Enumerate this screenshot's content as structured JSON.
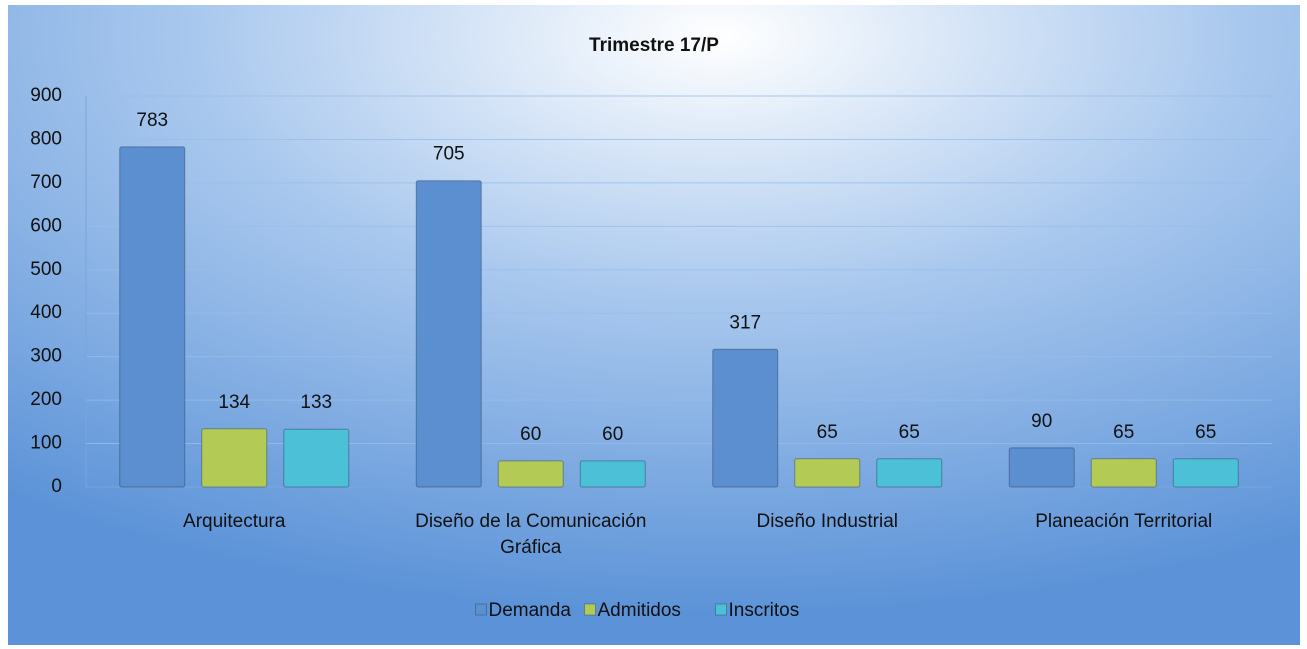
{
  "chart_data": {
    "type": "bar",
    "title": "Trimestre 17/P",
    "categories": [
      "Arquitectura",
      "Diseño de la Comunicación Gráfica",
      "Diseño Industrial",
      "Planeación Territorial"
    ],
    "series": [
      {
        "name": "Demanda",
        "color": "#5b8fd0",
        "values": [
          783,
          705,
          317,
          90
        ]
      },
      {
        "name": "Admitidos",
        "color": "#b3ca55",
        "values": [
          134,
          60,
          65,
          65
        ]
      },
      {
        "name": "Inscritos",
        "color": "#4cc0d6",
        "values": [
          133,
          60,
          65,
          65
        ]
      }
    ],
    "ylim": [
      0,
      900
    ],
    "yticks": [
      0,
      100,
      200,
      300,
      400,
      500,
      600,
      700,
      800,
      900
    ],
    "grid": true,
    "legend": "bottom"
  }
}
